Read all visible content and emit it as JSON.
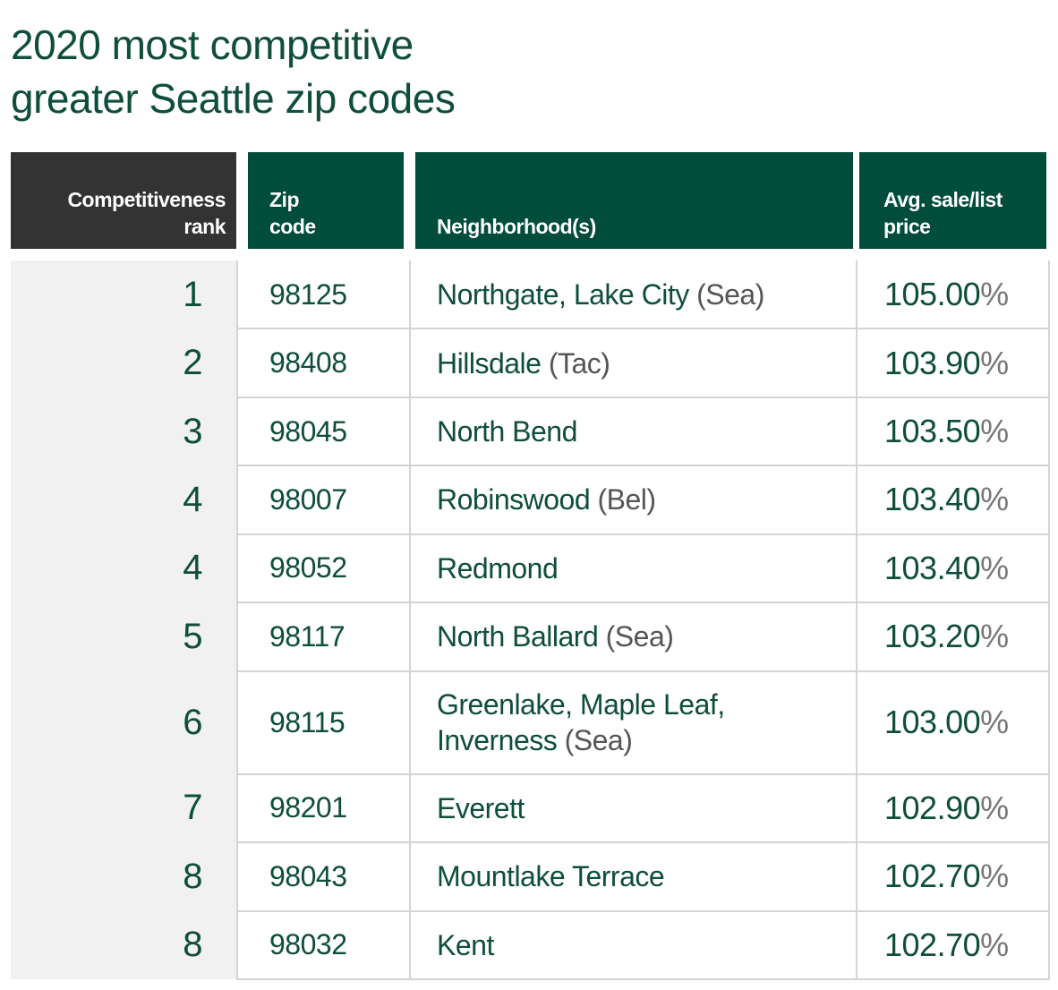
{
  "title": {
    "line1": "2020 most competitive",
    "line2": "greater Seattle zip codes"
  },
  "headers": {
    "rank": [
      "Competitiveness",
      "rank"
    ],
    "zip": [
      "Zip",
      "code"
    ],
    "neighborhood": "Neighborhood(s)",
    "avg": [
      "Avg. sale/list",
      "price"
    ]
  },
  "colors": {
    "brand_green": "#004d3b",
    "header_dark": "#333333",
    "rank_bg": "#f1f1f1"
  },
  "chart_data": {
    "type": "table",
    "title": "2020 most competitive greater Seattle zip codes",
    "columns": [
      "Competitiveness rank",
      "Zip code",
      "Neighborhood(s)",
      "Avg. sale/list price"
    ],
    "rows": [
      {
        "rank": "1",
        "zip": "98125",
        "name": "Northgate, Lake City",
        "suffix": "(Sea)",
        "value": "105.00",
        "unit": "%"
      },
      {
        "rank": "2",
        "zip": "98408",
        "name": "Hillsdale",
        "suffix": "(Tac)",
        "value": "103.90",
        "unit": "%"
      },
      {
        "rank": "3",
        "zip": "98045",
        "name": "North Bend",
        "suffix": "",
        "value": "103.50",
        "unit": "%"
      },
      {
        "rank": "4",
        "zip": "98007",
        "name": "Robinswood",
        "suffix": "(Bel)",
        "value": "103.40",
        "unit": "%"
      },
      {
        "rank": "4",
        "zip": "98052",
        "name": "Redmond",
        "suffix": "",
        "value": "103.40",
        "unit": "%"
      },
      {
        "rank": "5",
        "zip": "98117",
        "name": "North Ballard",
        "suffix": "(Sea)",
        "value": "103.20",
        "unit": "%"
      },
      {
        "rank": "6",
        "zip": "98115",
        "name": "Greenlake, Maple Leaf,",
        "name2": "Inverness",
        "suffix": "(Sea)",
        "value": "103.00",
        "unit": "%"
      },
      {
        "rank": "7",
        "zip": "98201",
        "name": "Everett",
        "suffix": "",
        "value": "102.90",
        "unit": "%"
      },
      {
        "rank": "8",
        "zip": "98043",
        "name": "Mountlake Terrace",
        "suffix": "",
        "value": "102.70",
        "unit": "%"
      },
      {
        "rank": "8",
        "zip": "98032",
        "name": "Kent",
        "suffix": "",
        "value": "102.70",
        "unit": "%"
      }
    ]
  }
}
